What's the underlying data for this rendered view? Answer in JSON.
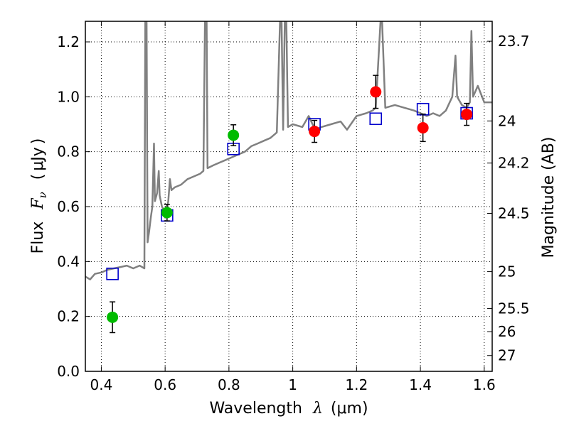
{
  "chart_data": {
    "type": "scatter",
    "x_axis": {
      "label": "Wavelength",
      "symbol": "λ",
      "unit": "μm",
      "range": [
        0.35,
        1.625
      ],
      "ticks": [
        0.4,
        0.6,
        0.8,
        1.0,
        1.2,
        1.4,
        1.6
      ],
      "tick_labels": [
        "0.4",
        "0.6",
        "0.8",
        "1",
        "1.2",
        "1.4",
        "1.6"
      ]
    },
    "y_axis": {
      "label": "Flux",
      "symbol": "F",
      "symbol_sub": "ν",
      "unit": "μJy",
      "range": [
        0,
        1.275
      ],
      "ticks": [
        0.0,
        0.2,
        0.4,
        0.6,
        0.8,
        1.0,
        1.2
      ],
      "tick_labels": [
        "0.0",
        "0.2",
        "0.4",
        "0.6",
        "0.8",
        "1.0",
        "1.2"
      ]
    },
    "y2_axis": {
      "label": "Magnitude (AB)",
      "ticks": [
        23.7,
        24,
        24.2,
        24.5,
        25,
        25.5,
        26,
        27
      ],
      "tick_labels": [
        "23.7",
        "24",
        "24.2",
        "24.5",
        "25",
        "25.5",
        "26",
        "27"
      ]
    },
    "grid": true,
    "series": [
      {
        "marker": "circle",
        "color": "#00bb00",
        "points": [
          {
            "x": 0.435,
            "y": 0.197,
            "err": 0.056
          },
          {
            "x": 0.606,
            "y": 0.578,
            "err": 0.03
          },
          {
            "x": 0.814,
            "y": 0.86,
            "err": 0.038
          }
        ]
      },
      {
        "marker": "circle",
        "color": "#ff0000",
        "points": [
          {
            "x": 1.068,
            "y": 0.874,
            "err": 0.04
          },
          {
            "x": 1.26,
            "y": 1.018,
            "err": 0.06
          },
          {
            "x": 1.408,
            "y": 0.887,
            "err": 0.05
          },
          {
            "x": 1.545,
            "y": 0.936,
            "err": 0.04
          }
        ]
      },
      {
        "marker": "open-square",
        "color": "#0000cc",
        "points": [
          {
            "x": 0.435,
            "y": 0.355
          },
          {
            "x": 0.606,
            "y": 0.568
          },
          {
            "x": 0.814,
            "y": 0.81
          },
          {
            "x": 1.068,
            "y": 0.9
          },
          {
            "x": 1.26,
            "y": 0.92
          },
          {
            "x": 1.408,
            "y": 0.955
          },
          {
            "x": 1.545,
            "y": 0.94
          }
        ]
      },
      {
        "marker": "line",
        "color": "#808080",
        "points": [
          [
            0.35,
            0.345
          ],
          [
            0.365,
            0.335
          ],
          [
            0.38,
            0.355
          ],
          [
            0.4,
            0.36
          ],
          [
            0.42,
            0.37
          ],
          [
            0.44,
            0.375
          ],
          [
            0.46,
            0.38
          ],
          [
            0.48,
            0.385
          ],
          [
            0.5,
            0.375
          ],
          [
            0.52,
            0.385
          ],
          [
            0.535,
            0.375
          ],
          [
            0.538,
            1.275
          ],
          [
            0.542,
            1.275
          ],
          [
            0.545,
            0.47
          ],
          [
            0.55,
            0.51
          ],
          [
            0.555,
            0.56
          ],
          [
            0.56,
            0.6
          ],
          [
            0.565,
            0.83
          ],
          [
            0.568,
            0.62
          ],
          [
            0.575,
            0.65
          ],
          [
            0.58,
            0.73
          ],
          [
            0.583,
            0.64
          ],
          [
            0.59,
            0.6
          ],
          [
            0.595,
            0.59
          ],
          [
            0.6,
            0.56
          ],
          [
            0.61,
            0.62
          ],
          [
            0.615,
            0.7
          ],
          [
            0.62,
            0.66
          ],
          [
            0.63,
            0.67
          ],
          [
            0.65,
            0.68
          ],
          [
            0.67,
            0.7
          ],
          [
            0.69,
            0.71
          ],
          [
            0.71,
            0.72
          ],
          [
            0.72,
            0.73
          ],
          [
            0.725,
            1.275
          ],
          [
            0.73,
            1.275
          ],
          [
            0.733,
            0.74
          ],
          [
            0.75,
            0.75
          ],
          [
            0.77,
            0.76
          ],
          [
            0.79,
            0.77
          ],
          [
            0.81,
            0.78
          ],
          [
            0.83,
            0.79
          ],
          [
            0.85,
            0.8
          ],
          [
            0.87,
            0.82
          ],
          [
            0.89,
            0.83
          ],
          [
            0.91,
            0.84
          ],
          [
            0.93,
            0.85
          ],
          [
            0.95,
            0.87
          ],
          [
            0.96,
            1.275
          ],
          [
            0.965,
            1.275
          ],
          [
            0.97,
            0.88
          ],
          [
            0.975,
            1.275
          ],
          [
            0.98,
            1.275
          ],
          [
            0.985,
            0.89
          ],
          [
            1.0,
            0.9
          ],
          [
            1.03,
            0.89
          ],
          [
            1.05,
            0.93
          ],
          [
            1.07,
            0.88
          ],
          [
            1.09,
            0.89
          ],
          [
            1.12,
            0.9
          ],
          [
            1.15,
            0.91
          ],
          [
            1.17,
            0.88
          ],
          [
            1.2,
            0.93
          ],
          [
            1.23,
            0.94
          ],
          [
            1.25,
            0.95
          ],
          [
            1.26,
            0.96
          ],
          [
            1.275,
            1.275
          ],
          [
            1.28,
            1.275
          ],
          [
            1.29,
            0.96
          ],
          [
            1.32,
            0.97
          ],
          [
            1.35,
            0.96
          ],
          [
            1.38,
            0.95
          ],
          [
            1.4,
            0.94
          ],
          [
            1.42,
            0.93
          ],
          [
            1.44,
            0.94
          ],
          [
            1.46,
            0.93
          ],
          [
            1.48,
            0.95
          ],
          [
            1.5,
            1.0
          ],
          [
            1.51,
            1.15
          ],
          [
            1.515,
            1.0
          ],
          [
            1.53,
            0.97
          ],
          [
            1.545,
            0.96
          ],
          [
            1.555,
            0.98
          ],
          [
            1.56,
            1.24
          ],
          [
            1.565,
            1.0
          ],
          [
            1.58,
            1.04
          ],
          [
            1.6,
            0.98
          ],
          [
            1.625,
            0.98
          ]
        ]
      }
    ]
  }
}
